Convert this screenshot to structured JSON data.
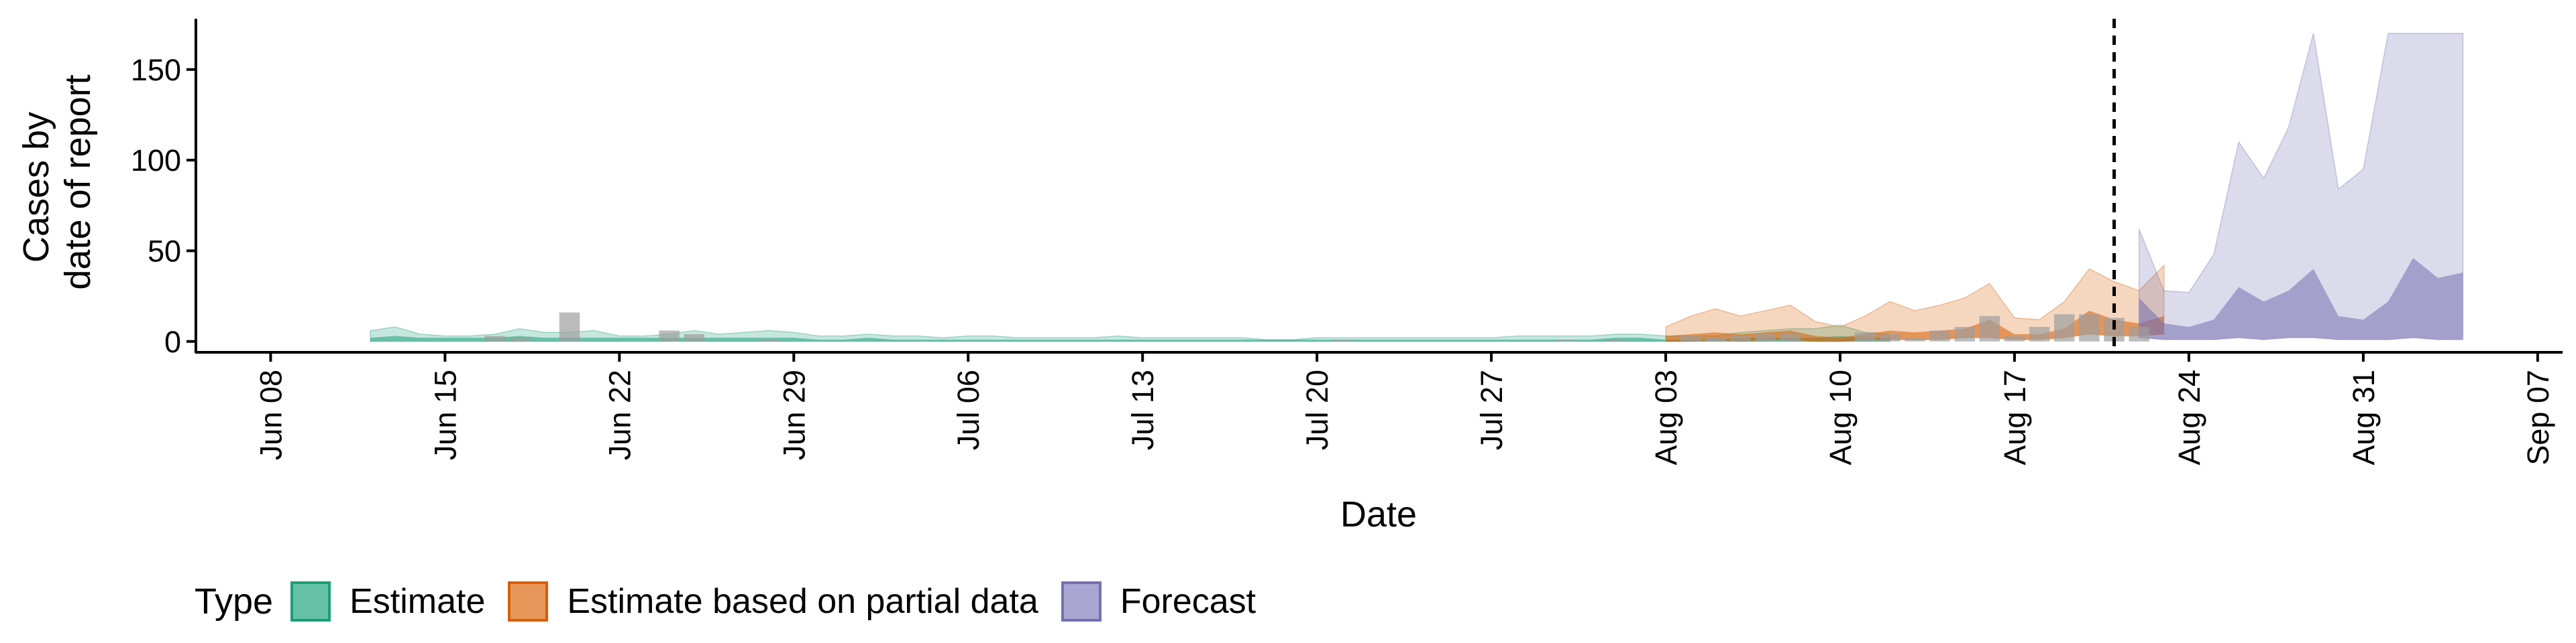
{
  "chart_data": {
    "type": "area",
    "title": "",
    "xlabel": "Date",
    "ylabel_lines": [
      "Cases by",
      "date of report"
    ],
    "ylim": [
      -6,
      178
    ],
    "yticks": [
      0,
      50,
      100,
      150
    ],
    "xrange": [
      "2020-06-05",
      "2020-09-08"
    ],
    "xticks": [
      "2020-06-08",
      "2020-06-15",
      "2020-06-22",
      "2020-06-29",
      "2020-07-06",
      "2020-07-13",
      "2020-07-20",
      "2020-07-27",
      "2020-08-03",
      "2020-08-10",
      "2020-08-17",
      "2020-08-24",
      "2020-08-31",
      "2020-09-07"
    ],
    "xtick_labels": [
      "Jun 08",
      "Jun 15",
      "Jun 22",
      "Jun 29",
      "Jul 06",
      "Jul 13",
      "Jul 20",
      "Jul 27",
      "Aug 03",
      "Aug 10",
      "Aug 17",
      "Aug 24",
      "Aug 31",
      "Sep 07"
    ],
    "vline_date": "2020-08-21",
    "legend": {
      "title": "Type",
      "position": "bottom",
      "items": [
        {
          "label": "Estimate",
          "fill": "#66c2a5",
          "border": "#1b9e77"
        },
        {
          "label": "Estimate based on partial data",
          "fill": "#e8975a",
          "border": "#d95f02"
        },
        {
          "label": "Forecast",
          "fill": "#a9a6d2",
          "border": "#7570b3"
        }
      ]
    },
    "series": [
      {
        "name": "Estimate",
        "color": "#1b9e77",
        "start_date": "2020-06-12",
        "outer_upper": [
          6,
          8,
          4,
          3,
          3,
          4,
          7,
          5,
          5,
          6,
          3,
          3,
          4,
          6,
          4,
          5,
          6,
          5,
          3,
          3,
          4,
          3,
          3,
          2,
          3,
          3,
          2,
          2,
          2,
          2,
          3,
          2,
          2,
          2,
          2,
          2,
          1,
          1,
          2,
          2,
          2,
          2,
          2,
          2,
          2,
          2,
          3,
          3,
          3,
          3,
          4,
          4,
          3,
          3,
          3,
          5,
          6,
          7,
          7,
          9,
          5,
          4
        ],
        "inner_upper": [
          2,
          3,
          2,
          2,
          2,
          2,
          3,
          2,
          2,
          2,
          2,
          2,
          2,
          2,
          2,
          2,
          2,
          2,
          1,
          1,
          2,
          1,
          1,
          1,
          1,
          1,
          1,
          1,
          1,
          1,
          1,
          1,
          1,
          1,
          1,
          1,
          1,
          1,
          1,
          1,
          1,
          1,
          1,
          1,
          1,
          1,
          1,
          1,
          1,
          1,
          2,
          2,
          1,
          1,
          1,
          2,
          2,
          2,
          2,
          3,
          2,
          2
        ],
        "lower": [
          0,
          0,
          0,
          0,
          0,
          0,
          0,
          0,
          0,
          0,
          0,
          0,
          0,
          0,
          0,
          0,
          0,
          0,
          0,
          0,
          0,
          0,
          0,
          0,
          0,
          0,
          0,
          0,
          0,
          0,
          0,
          0,
          0,
          0,
          0,
          0,
          0,
          0,
          0,
          0,
          0,
          0,
          0,
          0,
          0,
          0,
          0,
          0,
          0,
          0,
          0,
          0,
          0,
          0,
          0,
          0,
          0,
          0,
          0,
          0,
          0,
          0
        ]
      },
      {
        "name": "Estimate based on partial data",
        "color": "#d95f02",
        "start_date": "2020-08-03",
        "outer_upper": [
          8,
          14,
          18,
          14,
          17,
          20,
          11,
          8,
          14,
          22,
          17,
          20,
          24,
          32,
          13,
          12,
          22,
          40,
          33,
          28,
          42
        ],
        "inner_upper": [
          3,
          4,
          5,
          4,
          5,
          6,
          3,
          2,
          4,
          6,
          5,
          6,
          7,
          12,
          4,
          4,
          7,
          17,
          12,
          10,
          14
        ],
        "lower": [
          0,
          0,
          1,
          0,
          1,
          1,
          0,
          0,
          1,
          1,
          1,
          1,
          2,
          2,
          1,
          1,
          2,
          4,
          3,
          3,
          4
        ]
      },
      {
        "name": "Forecast",
        "color": "#7570b3",
        "start_date": "2020-08-22",
        "outer_upper": [
          62,
          28,
          27,
          48,
          110,
          90,
          118,
          170,
          84,
          95,
          170,
          170,
          170,
          170
        ],
        "inner_upper": [
          24,
          10,
          8,
          12,
          30,
          22,
          28,
          40,
          14,
          12,
          22,
          46,
          35,
          38
        ],
        "lower": [
          2,
          1,
          1,
          1,
          2,
          1,
          2,
          2,
          1,
          1,
          1,
          2,
          1,
          1
        ]
      }
    ],
    "reported_cases": [
      {
        "date": "2020-06-12",
        "value": 0
      },
      {
        "date": "2020-06-13",
        "value": 0
      },
      {
        "date": "2020-06-14",
        "value": 0
      },
      {
        "date": "2020-06-15",
        "value": 0
      },
      {
        "date": "2020-06-16",
        "value": 0
      },
      {
        "date": "2020-06-17",
        "value": 3
      },
      {
        "date": "2020-06-18",
        "value": 2
      },
      {
        "date": "2020-06-19",
        "value": 0
      },
      {
        "date": "2020-06-20",
        "value": 16
      },
      {
        "date": "2020-06-21",
        "value": 0
      },
      {
        "date": "2020-06-22",
        "value": 0
      },
      {
        "date": "2020-06-23",
        "value": 0
      },
      {
        "date": "2020-06-24",
        "value": 6
      },
      {
        "date": "2020-06-25",
        "value": 4
      },
      {
        "date": "2020-06-26",
        "value": 0
      },
      {
        "date": "2020-06-27",
        "value": 0
      },
      {
        "date": "2020-06-28",
        "value": 1
      },
      {
        "date": "2020-06-29",
        "value": 0
      },
      {
        "date": "2020-06-30",
        "value": 0
      },
      {
        "date": "2020-07-01",
        "value": 0
      },
      {
        "date": "2020-07-02",
        "value": 0
      },
      {
        "date": "2020-07-03",
        "value": 0
      },
      {
        "date": "2020-07-04",
        "value": 0
      },
      {
        "date": "2020-07-05",
        "value": 0
      },
      {
        "date": "2020-07-06",
        "value": 0
      },
      {
        "date": "2020-07-07",
        "value": 0
      },
      {
        "date": "2020-07-08",
        "value": 0
      },
      {
        "date": "2020-07-09",
        "value": 0
      },
      {
        "date": "2020-07-10",
        "value": 0
      },
      {
        "date": "2020-07-11",
        "value": 0
      },
      {
        "date": "2020-07-12",
        "value": 0
      },
      {
        "date": "2020-07-13",
        "value": 0
      },
      {
        "date": "2020-07-14",
        "value": 0
      },
      {
        "date": "2020-07-15",
        "value": 0
      },
      {
        "date": "2020-07-16",
        "value": 0
      },
      {
        "date": "2020-07-17",
        "value": 0
      },
      {
        "date": "2020-07-18",
        "value": 0
      },
      {
        "date": "2020-07-19",
        "value": 0
      },
      {
        "date": "2020-07-20",
        "value": 0
      },
      {
        "date": "2020-07-21",
        "value": 1
      },
      {
        "date": "2020-07-22",
        "value": 0
      },
      {
        "date": "2020-07-23",
        "value": 0
      },
      {
        "date": "2020-07-24",
        "value": 0
      },
      {
        "date": "2020-07-25",
        "value": 0
      },
      {
        "date": "2020-07-26",
        "value": 0
      },
      {
        "date": "2020-07-27",
        "value": 0
      },
      {
        "date": "2020-07-28",
        "value": 0
      },
      {
        "date": "2020-07-29",
        "value": 0
      },
      {
        "date": "2020-07-30",
        "value": 1
      },
      {
        "date": "2020-07-31",
        "value": 0
      },
      {
        "date": "2020-08-01",
        "value": 1
      },
      {
        "date": "2020-08-02",
        "value": 0
      },
      {
        "date": "2020-08-03",
        "value": 0
      },
      {
        "date": "2020-08-04",
        "value": 3
      },
      {
        "date": "2020-08-05",
        "value": 2
      },
      {
        "date": "2020-08-06",
        "value": 3
      },
      {
        "date": "2020-08-07",
        "value": 4
      },
      {
        "date": "2020-08-08",
        "value": 4
      },
      {
        "date": "2020-08-09",
        "value": 0
      },
      {
        "date": "2020-08-10",
        "value": 0
      },
      {
        "date": "2020-08-11",
        "value": 5
      },
      {
        "date": "2020-08-12",
        "value": 4
      },
      {
        "date": "2020-08-13",
        "value": 2
      },
      {
        "date": "2020-08-14",
        "value": 6
      },
      {
        "date": "2020-08-15",
        "value": 8
      },
      {
        "date": "2020-08-16",
        "value": 14
      },
      {
        "date": "2020-08-17",
        "value": 3
      },
      {
        "date": "2020-08-18",
        "value": 8
      },
      {
        "date": "2020-08-19",
        "value": 15
      },
      {
        "date": "2020-08-20",
        "value": 15
      },
      {
        "date": "2020-08-21",
        "value": 13
      },
      {
        "date": "2020-08-22",
        "value": 8
      }
    ],
    "reported_color": "#9e9e9e"
  }
}
